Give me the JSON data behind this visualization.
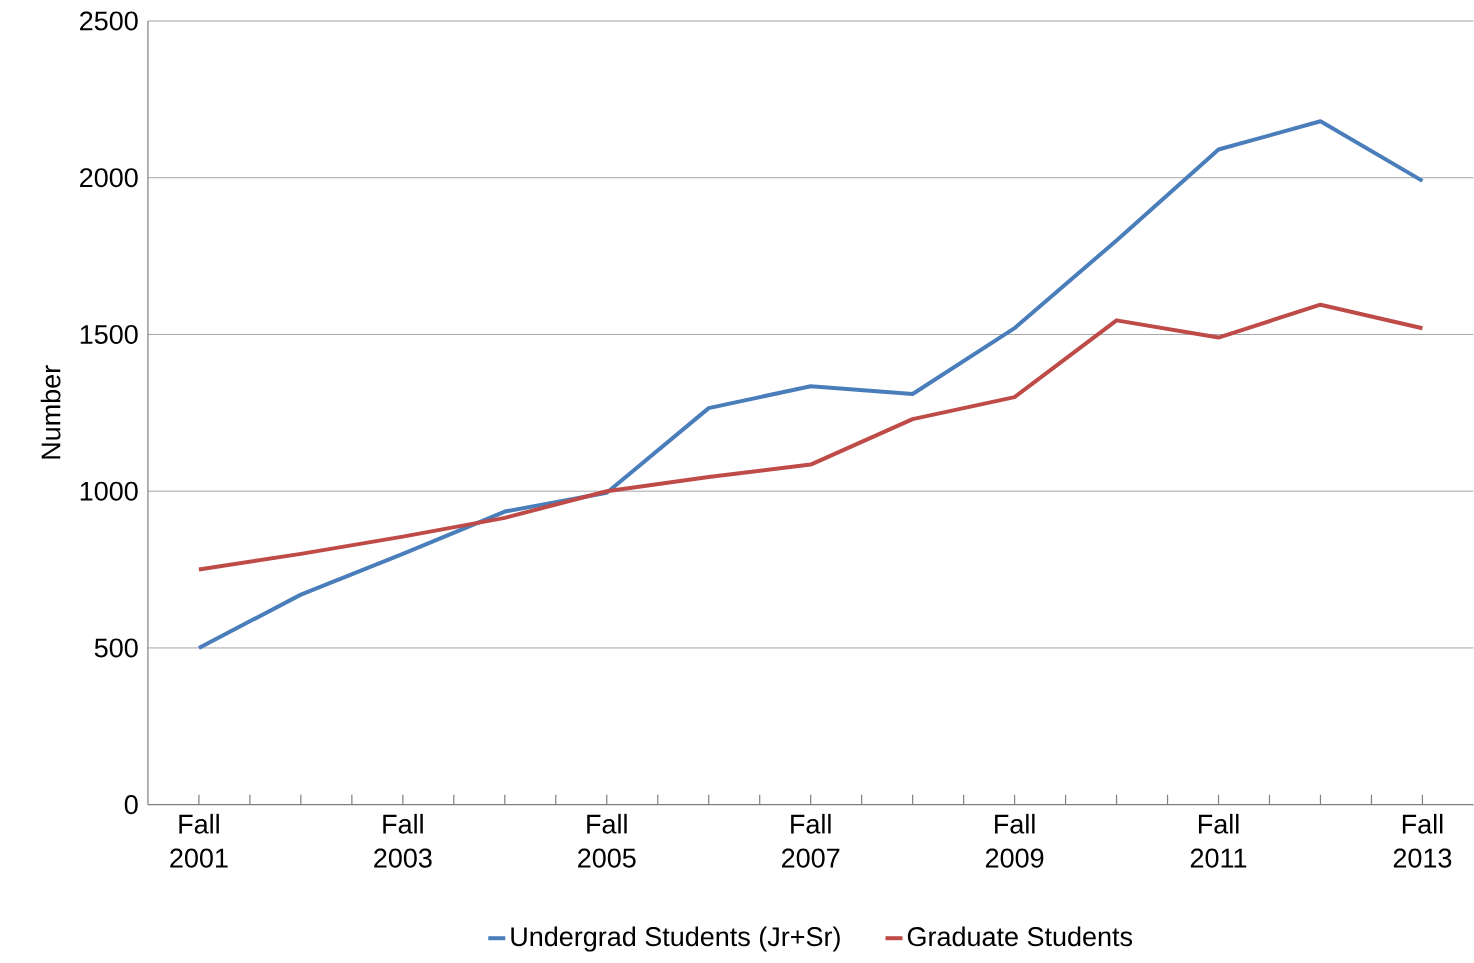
{
  "chart_data": {
    "type": "line",
    "ylabel": "Number",
    "categories": [
      "Fall 2001",
      null,
      "Fall 2003",
      null,
      "Fall 2005",
      null,
      "Fall 2007",
      null,
      "Fall 2009",
      null,
      "Fall 2011",
      null,
      "Fall 2013"
    ],
    "series": [
      {
        "name": "Undergrad Students (Jr+Sr)",
        "color": "#4a7ebb",
        "values": [
          500,
          670,
          800,
          935,
          995,
          1265,
          1335,
          1310,
          1520,
          1800,
          2090,
          2180,
          1990
        ]
      },
      {
        "name": "Graduate Students",
        "color": "#be4b48",
        "values": [
          750,
          800,
          855,
          915,
          1000,
          1045,
          1085,
          1230,
          1300,
          1545,
          1490,
          1595,
          1520
        ]
      }
    ],
    "ylim": [
      0,
      2500
    ],
    "yticks": [
      0,
      500,
      1000,
      1500,
      2000,
      2500
    ],
    "grid": "y",
    "legend": "bottom",
    "marker": "none"
  }
}
